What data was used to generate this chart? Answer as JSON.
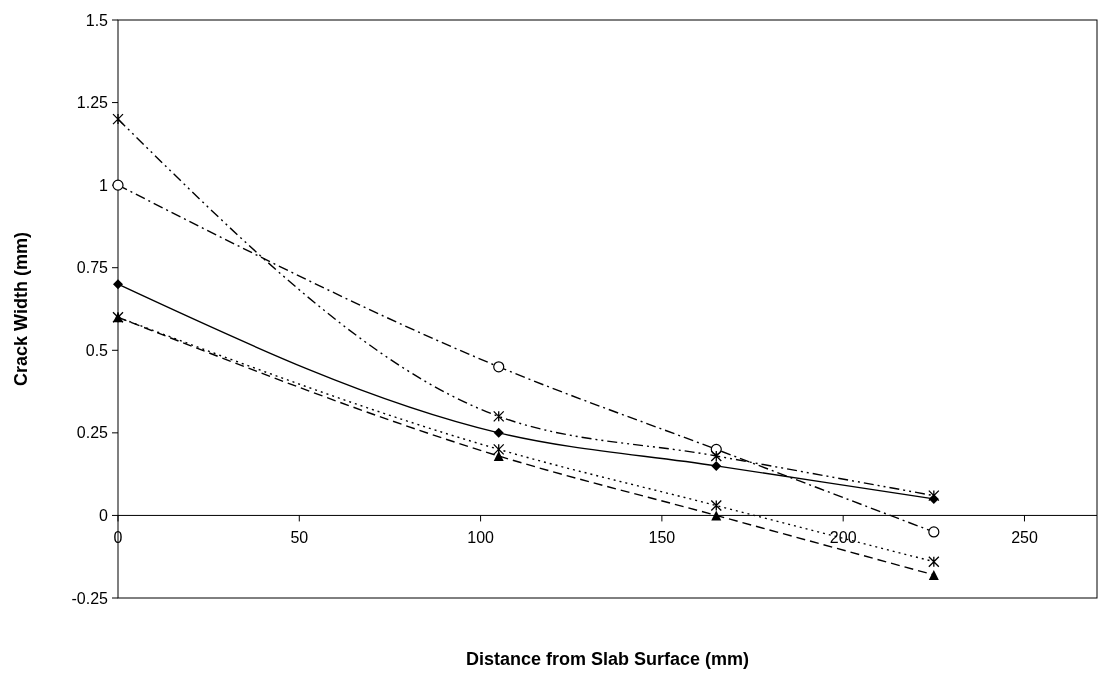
{
  "chart_data": {
    "type": "line",
    "xlabel": "Distance from Slab Surface (mm)",
    "ylabel": "Crack Width (mm)",
    "x": [
      0,
      105,
      165,
      225
    ],
    "xlim": [
      0,
      270
    ],
    "xticks": [
      0,
      50,
      100,
      150,
      200,
      250
    ],
    "ylim": [
      -0.25,
      1.5
    ],
    "yticks": [
      -0.25,
      0,
      0.25,
      0.5,
      0.75,
      1,
      1.25,
      1.5
    ],
    "grid": false,
    "series": [
      {
        "color": "#000000",
        "values": [
          0.7,
          0.25,
          0.15,
          0.05
        ],
        "marker": "diamond",
        "line_style": "solid"
      },
      {
        "color": "#000000",
        "values": [
          0.6,
          0.18,
          0.0,
          -0.18
        ],
        "marker": "triangle",
        "line_style": "dashed"
      },
      {
        "color": "#000000",
        "values": [
          0.6,
          0.2,
          0.03,
          -0.14
        ],
        "marker": "cross",
        "line_style": "dotted"
      },
      {
        "color": "#000000",
        "values": [
          1.0,
          0.45,
          0.2,
          -0.05
        ],
        "marker": "circle",
        "line_style": "dashdot"
      },
      {
        "color": "#000000",
        "values": [
          1.2,
          0.3,
          0.18,
          0.06
        ],
        "marker": "cross",
        "line_style": "dashdotdot"
      }
    ]
  }
}
